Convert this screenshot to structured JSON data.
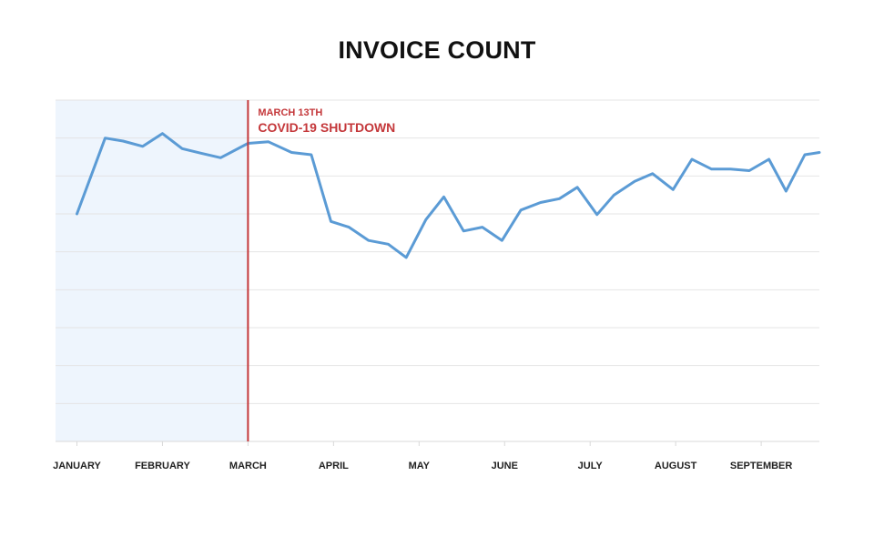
{
  "chart_data": {
    "type": "line",
    "title": "INVOICE COUNT",
    "xlabel": "",
    "ylabel": "",
    "grid": true,
    "y_tick_labels": "none",
    "categories": [
      "JANUARY",
      "FEBRUARY",
      "MARCH",
      "APRIL",
      "MAY",
      "JUNE",
      "JULY",
      "AUGUST",
      "SEPTEMBER"
    ],
    "series": [
      {
        "name": "",
        "x": [
          0,
          0.33,
          0.54,
          0.77,
          1.0,
          1.23,
          1.45,
          1.68,
          2.0,
          2.24,
          2.51,
          2.74,
          2.97,
          3.18,
          3.41,
          3.64,
          3.85,
          4.08,
          4.29,
          4.52,
          4.74,
          4.97,
          5.19,
          5.42,
          5.64,
          5.85,
          6.08,
          6.28,
          6.52,
          6.73,
          6.97,
          7.19,
          7.42,
          7.64,
          7.86,
          8.09,
          8.29,
          8.51,
          8.68
        ],
        "values": [
          6.0,
          8.0,
          7.92,
          7.78,
          8.12,
          7.72,
          7.6,
          7.48,
          7.86,
          7.9,
          7.62,
          7.56,
          5.8,
          5.65,
          5.3,
          5.2,
          4.85,
          5.85,
          6.45,
          5.55,
          5.65,
          5.3,
          6.1,
          6.3,
          6.4,
          6.7,
          5.98,
          6.5,
          6.86,
          7.06,
          6.64,
          7.44,
          7.18,
          7.18,
          7.14,
          7.44,
          6.6,
          7.56,
          7.62
        ]
      }
    ],
    "xlim": [
      -0.25,
      8.68
    ],
    "ylim": [
      0,
      9
    ],
    "shaded_region": {
      "x_start": -0.25,
      "x_end": 2.0,
      "color": "#eef5fd"
    },
    "annotation": {
      "x": 2.0,
      "date_text": "MARCH 13TH",
      "title_text": "COVID-19 SHUTDOWN",
      "color": "#c4373a"
    },
    "colors": {
      "line": "#5b9bd5",
      "grid": "#e4e4e4",
      "axis": "#d9d9d9"
    }
  }
}
